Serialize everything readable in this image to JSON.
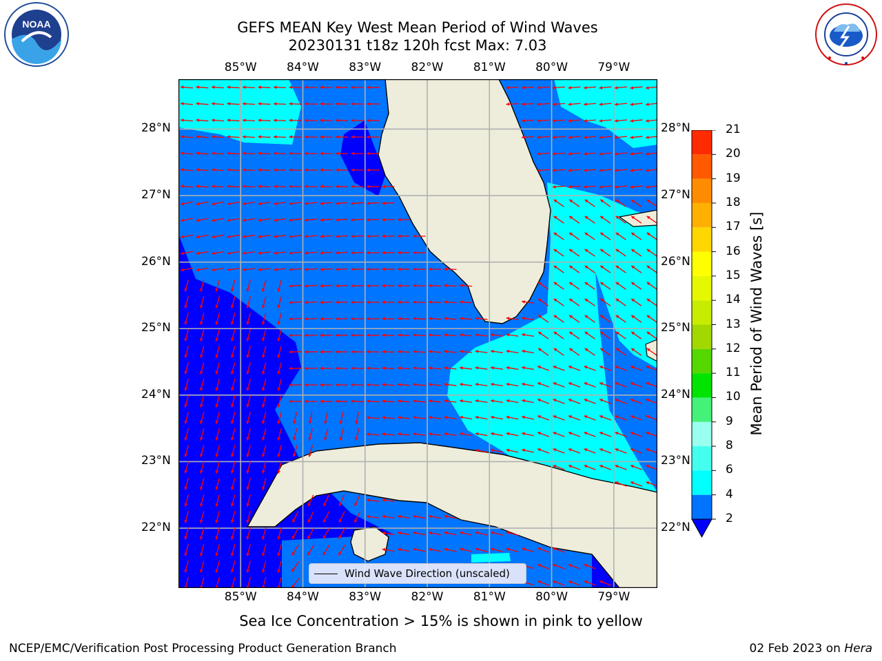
{
  "header": {
    "title_line1": "GEFS MEAN Key West Mean Period of Wind Waves",
    "title_line2": "20230131 t18z 120h fcst   Max: 7.03"
  },
  "logos": {
    "noaa": {
      "icon": "noaa-logo",
      "text": "NOAA",
      "ring_text": "NATIONAL OCEANIC AND ATMOSPHERIC ADMINISTRATION · U.S. DEPARTMENT OF COMMERCE"
    },
    "nws": {
      "icon": "nws-logo",
      "ring_text": "NATIONAL WEATHER SERVICE"
    }
  },
  "map": {
    "lon_labels": [
      "85°W",
      "84°W",
      "83°W",
      "82°W",
      "81°W",
      "80°W",
      "79°W"
    ],
    "lat_labels": [
      "22°N",
      "23°N",
      "24°N",
      "25°N",
      "26°N",
      "27°N",
      "28°N"
    ],
    "lon_values": [
      -85,
      -84,
      -83,
      -82,
      -81,
      -80,
      -79
    ],
    "lat_values": [
      22,
      23,
      24,
      25,
      26,
      27,
      28
    ],
    "lon_range": [
      -86.0,
      -78.3
    ],
    "lat_range": [
      21.1,
      28.75
    ],
    "grid": true,
    "legend": {
      "label": "Wind Wave Direction (unscaled)",
      "placement": "lower-center"
    },
    "colors": {
      "land": "#eeeddc",
      "period_2_4": "#0075ff",
      "period_4_6": "#00ffff",
      "period_below_2": "#0000ff",
      "arrows": "#ff0000",
      "grid": "#b0b0b0"
    }
  },
  "colorbar": {
    "label": "Mean Period of Wind Waves [s]",
    "ticks": [
      "2",
      "4",
      "6",
      "8",
      "9",
      "10",
      "11",
      "12",
      "13",
      "14",
      "15",
      "16",
      "17",
      "18",
      "19",
      "20",
      "21"
    ],
    "levels": [
      2,
      4,
      6,
      8,
      9,
      10,
      11,
      12,
      13,
      14,
      15,
      16,
      17,
      18,
      19,
      20,
      21
    ],
    "colors": [
      "#0073ff",
      "#00ffff",
      "#44ffee",
      "#99ffee",
      "#44f27a",
      "#00e400",
      "#55d800",
      "#a2d800",
      "#c8ec00",
      "#e6f800",
      "#ffff00",
      "#ffd700",
      "#ffb000",
      "#ff8c00",
      "#ff5a00",
      "#ff2b00"
    ],
    "under_color": "#0000ff",
    "extend": "min"
  },
  "notes": {
    "ice": "Sea Ice Concentration > 15% is shown in pink to yellow"
  },
  "footer": {
    "left": "NCEP/EMC/Verification Post Processing Product Generation Branch",
    "date": "02 Feb 2023 on ",
    "host": "Hera"
  }
}
